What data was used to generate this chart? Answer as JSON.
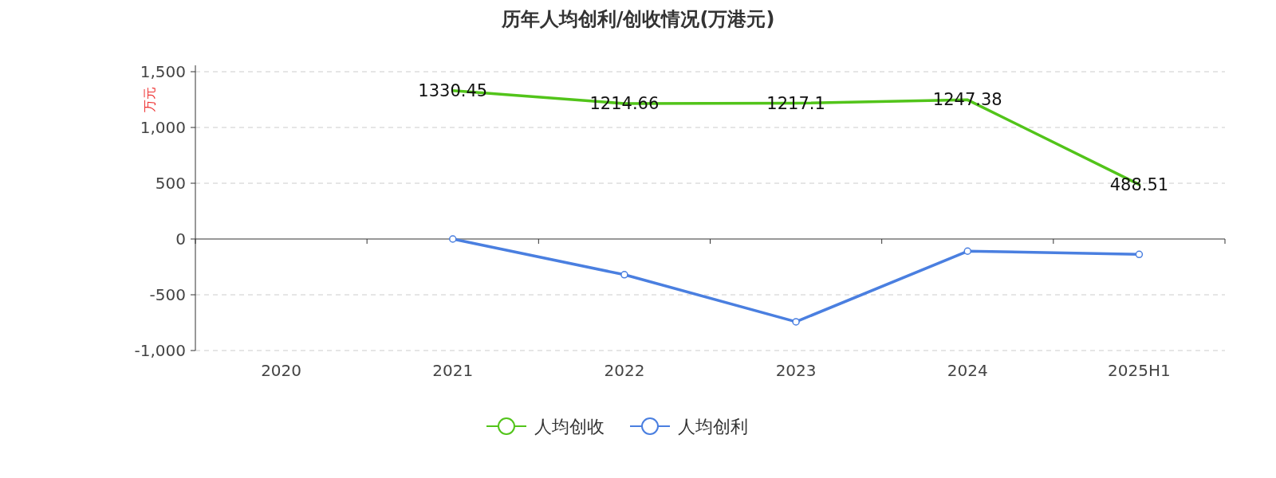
{
  "chart_data": {
    "type": "line",
    "title": "历年人均创利/创收情况(万港元)",
    "ylabel": "万元",
    "categories": [
      "2020",
      "2021",
      "2022",
      "2023",
      "2024",
      "2025H1"
    ],
    "series": [
      {
        "name": "人均创收",
        "color": "#52c41a",
        "values": [
          null,
          1330.45,
          1214.66,
          1217.1,
          1247.38,
          488.51
        ],
        "data_labels": true,
        "marker": "none"
      },
      {
        "name": "人均创利",
        "color": "#4a7fe0",
        "values": [
          null,
          0,
          -320,
          -742,
          -109,
          -138
        ],
        "marker": "circle"
      }
    ],
    "ylim": [
      -1000,
      1500
    ],
    "yticks": [
      {
        "value": -1000,
        "label": "-1,000"
      },
      -500,
      0,
      500,
      {
        "value": 1000,
        "label": "1,000"
      },
      {
        "value": 1500,
        "label": "1,500"
      }
    ],
    "grid": "y",
    "legend": "bottom",
    "line_style": "solid"
  }
}
